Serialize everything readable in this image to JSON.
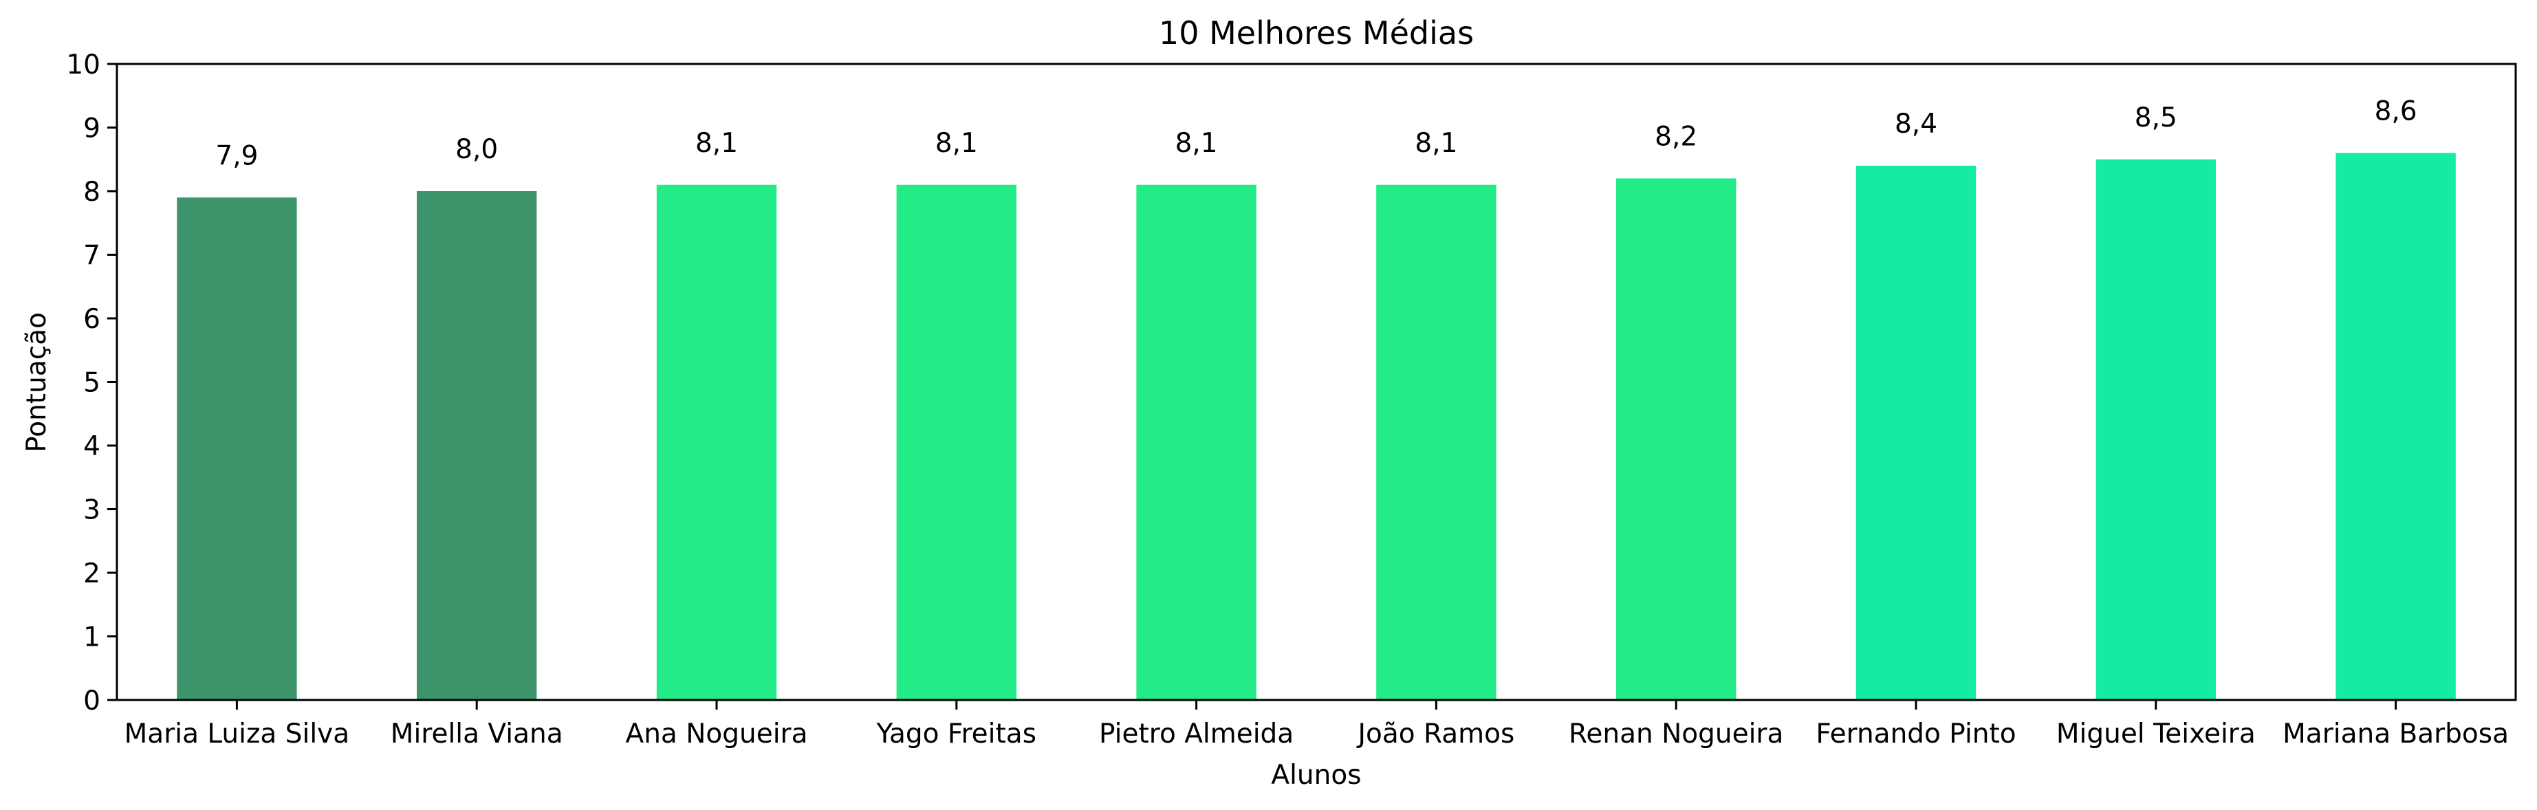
{
  "chart_data": {
    "type": "bar",
    "title": "10 Melhores Médias",
    "xlabel": "Alunos",
    "ylabel": "Pontuação",
    "ylim": [
      0,
      10
    ],
    "yticks": [
      0,
      1,
      2,
      3,
      4,
      5,
      6,
      7,
      8,
      9,
      10
    ],
    "grid": false,
    "legend": "none",
    "categories": [
      "Maria Luiza Silva",
      "Mirella Viana",
      "Ana Nogueira",
      "Yago Freitas",
      "Pietro Almeida",
      "João Ramos",
      "Renan Nogueira",
      "Fernando Pinto",
      "Miguel Teixeira",
      "Mariana Barbosa"
    ],
    "values": [
      7.9,
      8.0,
      8.1,
      8.1,
      8.1,
      8.1,
      8.2,
      8.4,
      8.5,
      8.6
    ],
    "data_labels": [
      "7,9",
      "8,0",
      "8,1",
      "8,1",
      "8,1",
      "8,1",
      "8,2",
      "8,4",
      "8,5",
      "8,6"
    ],
    "colors": [
      "#3d946b",
      "#3d946b",
      "#22eb87",
      "#22eb87",
      "#22eb87",
      "#22eb87",
      "#22eb87",
      "#14eba3",
      "#14eba3",
      "#14eba3"
    ]
  }
}
